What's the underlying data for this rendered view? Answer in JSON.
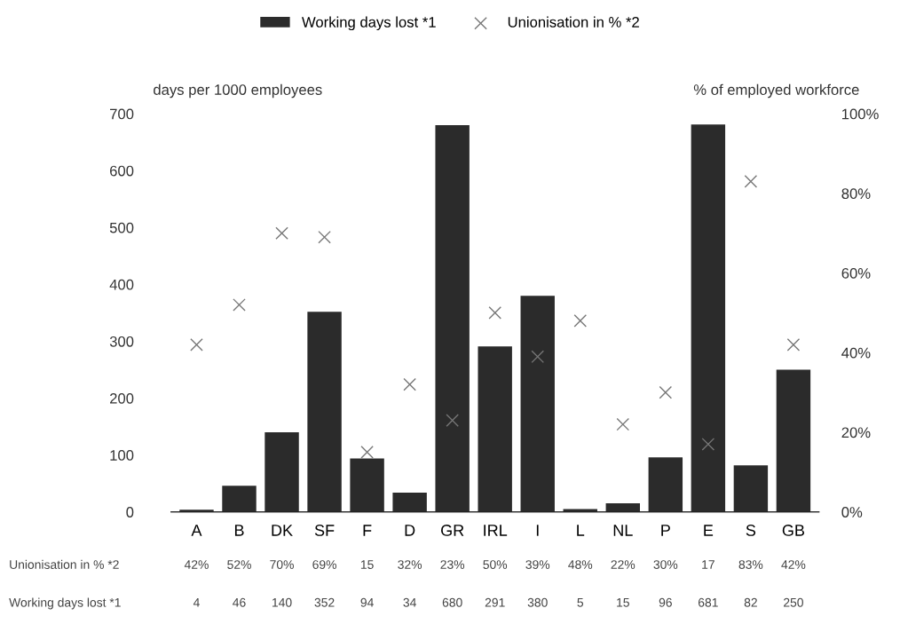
{
  "chart_data": {
    "type": "bar",
    "categories": [
      "A",
      "B",
      "DK",
      "SF",
      "F",
      "D",
      "GR",
      "IRL",
      "I",
      "L",
      "NL",
      "P",
      "E",
      "S",
      "GB"
    ],
    "series": [
      {
        "name": "Working days lost *1",
        "color": "#2b2b2b",
        "values": [
          4,
          46,
          140,
          352,
          94,
          34,
          680,
          291,
          380,
          5,
          15,
          96,
          681,
          82,
          250
        ],
        "value_labels": [
          "4",
          "46",
          "140",
          "352",
          "94",
          "34",
          "680",
          "291",
          "380",
          "5",
          "15",
          "96",
          "681",
          "82",
          "250"
        ]
      },
      {
        "name": "Unionisation in % *2",
        "type": "scatter",
        "axis": "y2",
        "marker": "cross",
        "color": "#777777",
        "values": [
          42,
          52,
          70,
          69,
          15,
          32,
          23,
          50,
          39,
          48,
          22,
          30,
          17,
          83,
          42
        ],
        "value_labels": [
          "42%",
          "52%",
          "70%",
          "69%",
          "15",
          "32%",
          "23%",
          "50%",
          "39%",
          "48%",
          "22%",
          "30%",
          "17",
          "83%",
          "42%"
        ]
      }
    ],
    "ylabel": "days per 1000 employees",
    "y2label": "% of employed workforce",
    "ylim": [
      0,
      700
    ],
    "yticks": [
      0,
      100,
      200,
      300,
      400,
      500,
      600,
      700
    ],
    "y2lim": [
      0,
      100
    ],
    "y2ticks": [
      {
        "value": 0,
        "label": "0%"
      },
      {
        "value": 20,
        "label": "20%"
      },
      {
        "value": 40,
        "label": "40%"
      },
      {
        "value": 60,
        "label": "60%"
      },
      {
        "value": 80,
        "label": "80%"
      },
      {
        "value": 100,
        "label": "100%"
      }
    ],
    "grid": false,
    "legend": "top"
  }
}
